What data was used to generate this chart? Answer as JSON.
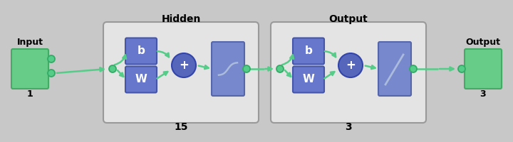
{
  "bg_color": "#c8c8c8",
  "green_box_color": "#66cc88",
  "green_box_edge": "#44aa66",
  "blue_box_color": "#6677cc",
  "blue_box_edge": "#4455aa",
  "blue_circle_color": "#5566bb",
  "blue_circle_edge": "#3344aa",
  "blue_rect_color": "#7788cc",
  "blue_rect_edge": "#5566aa",
  "rounded_rect_color": "#e4e4e4",
  "rounded_rect_edge": "#999999",
  "arrow_color": "#55cc88",
  "node_color": "#55cc88",
  "node_edge": "#33aa66",
  "text_color": "#000000",
  "input_label": "Input",
  "output_label": "Output",
  "hidden_label": "Hidden",
  "output_layer_label": "Output",
  "input_num": "1",
  "hidden_num": "15",
  "output_num": "3",
  "w_label": "W",
  "b_label": "b",
  "plus_label": "+"
}
